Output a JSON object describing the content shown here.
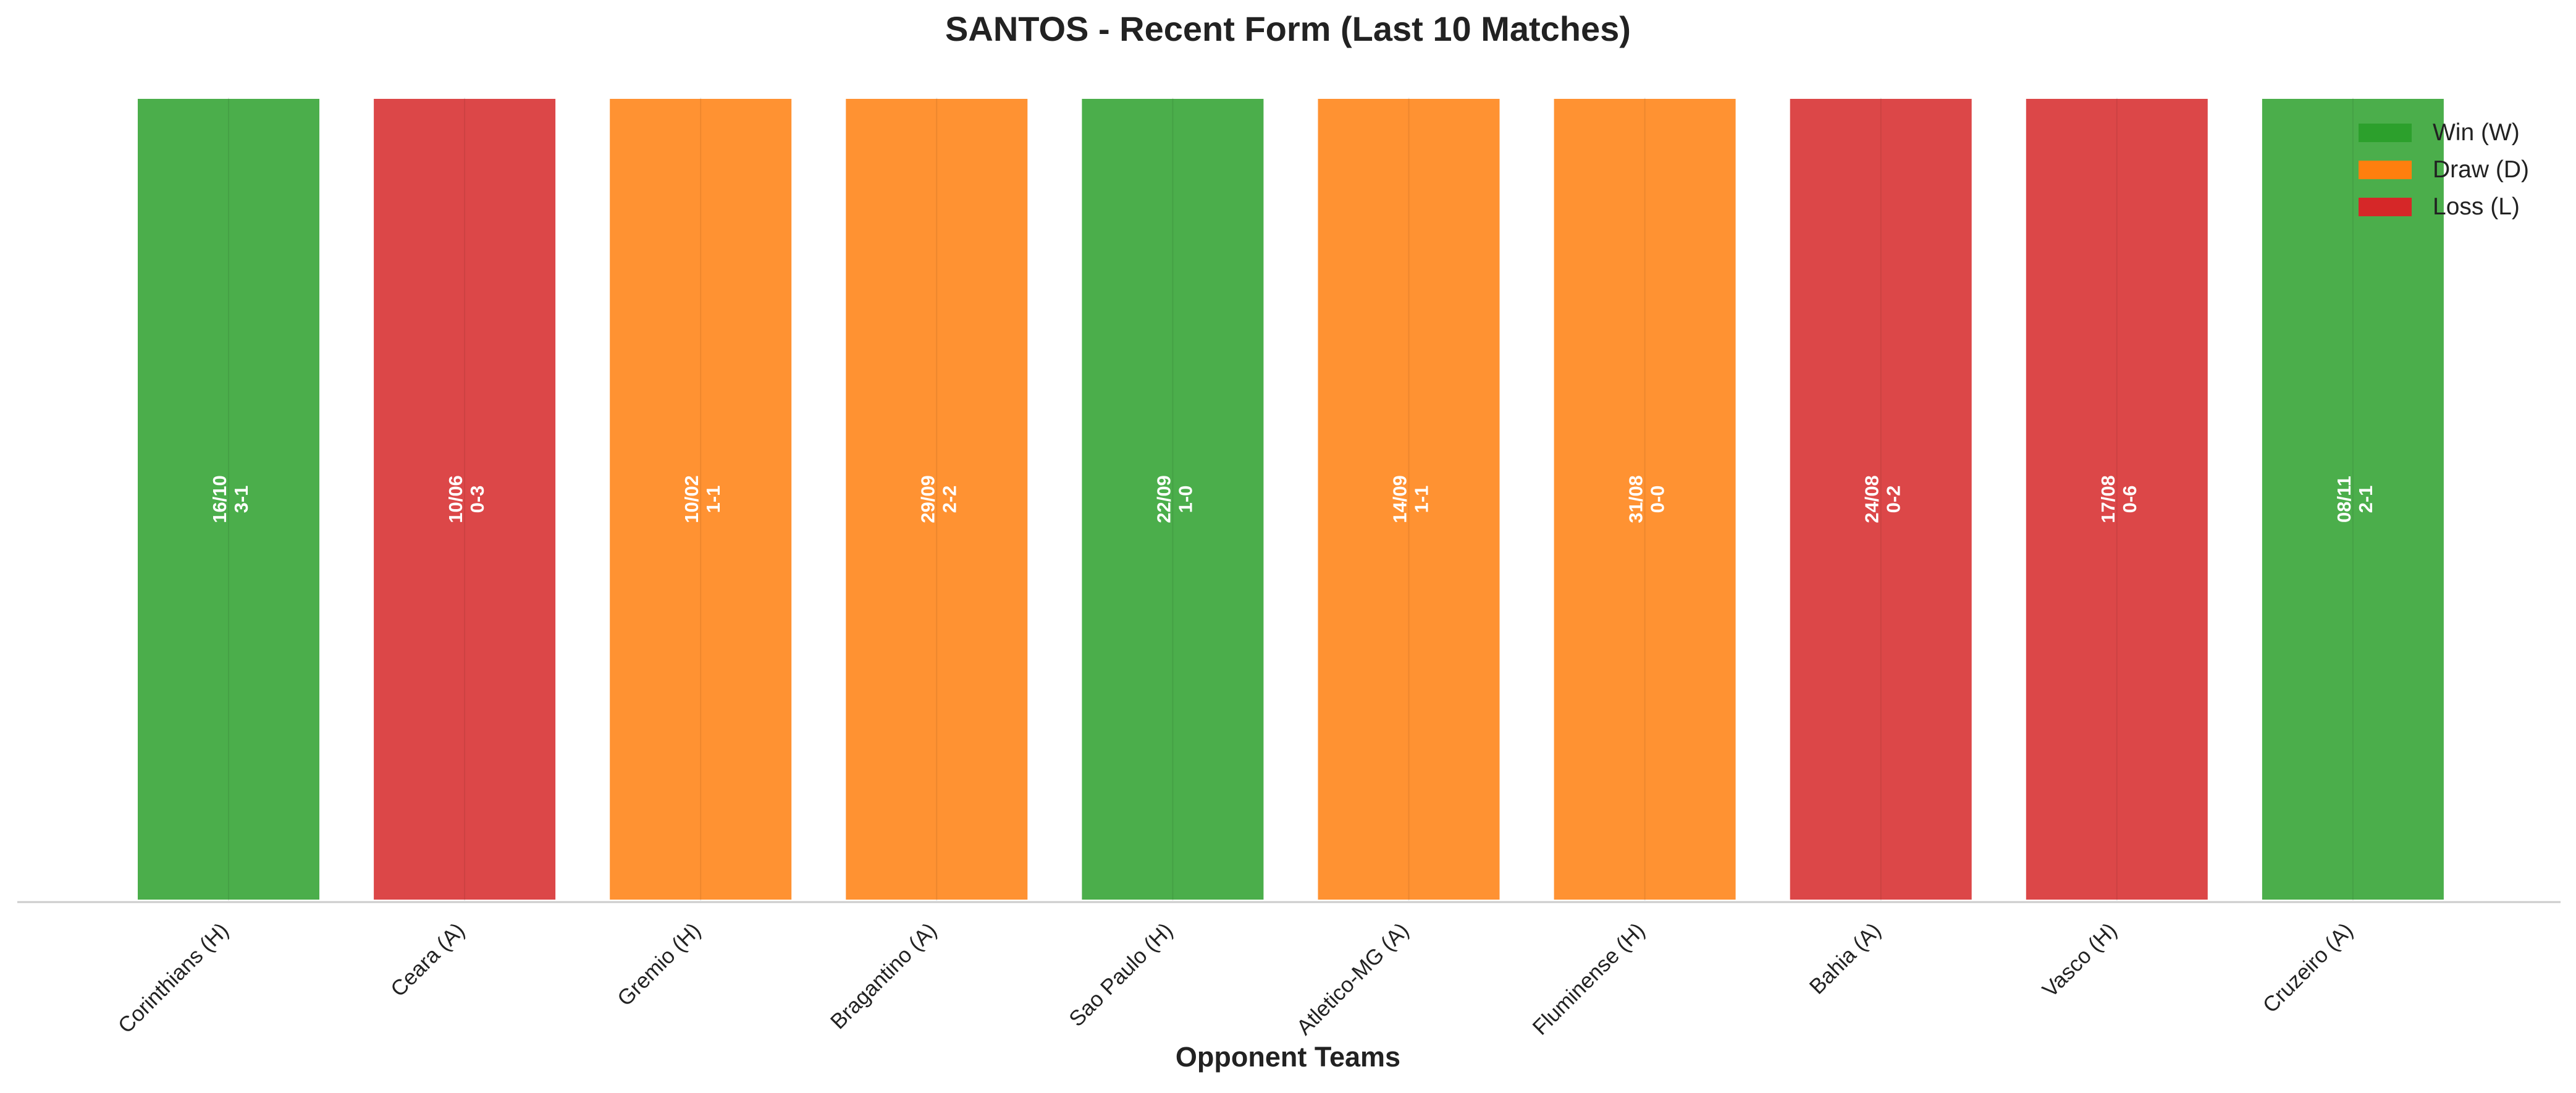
{
  "chart_data": {
    "type": "bar",
    "title": "SANTOS - Recent Form (Last 10 Matches)",
    "xlabel": "Opponent Teams",
    "ylabel": "",
    "categories": [
      "Corinthians (H)",
      "Ceara (A)",
      "Gremio (H)",
      "Bragantino (A)",
      "Sao Paulo (H)",
      "Atletico-MG (A)",
      "Fluminense (H)",
      "Bahia (A)",
      "Vasco (H)",
      "Cruzeiro (A)"
    ],
    "values": [
      1,
      1,
      1,
      1,
      1,
      1,
      1,
      1,
      1,
      1
    ],
    "results": [
      "W",
      "L",
      "D",
      "D",
      "W",
      "D",
      "D",
      "L",
      "L",
      "W"
    ],
    "dates": [
      "16/10",
      "10/06",
      "10/02",
      "29/09",
      "22/09",
      "14/09",
      "31/08",
      "24/08",
      "17/08",
      "08/11"
    ],
    "scores": [
      "3-1",
      "0-3",
      "1-1",
      "2-2",
      "1-0",
      "1-1",
      "0-0",
      "0-2",
      "0-6",
      "2-1"
    ],
    "ylim": [
      0,
      1
    ],
    "grid": false,
    "legend_position": "top-right",
    "legend": [
      {
        "key": "W",
        "label": "Win (W)"
      },
      {
        "key": "D",
        "label": "Draw (D)"
      },
      {
        "key": "L",
        "label": "Loss (L)"
      }
    ],
    "colors": {
      "W": "#2ca02c",
      "D": "#ff7f0e",
      "L": "#d62728"
    }
  }
}
